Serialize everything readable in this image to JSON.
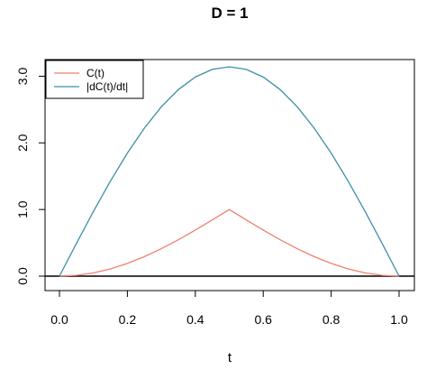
{
  "chart_data": {
    "type": "line",
    "title": "D =  1",
    "xlabel": "t",
    "ylabel": "",
    "xlim": [
      0,
      1
    ],
    "ylim": [
      0,
      3.1416
    ],
    "x_ticks": [
      0.0,
      0.2,
      0.4,
      0.6,
      0.8,
      1.0
    ],
    "x_tick_labels": [
      "0.0",
      "0.2",
      "0.4",
      "0.6",
      "0.8",
      "1.0"
    ],
    "y_ticks": [
      0.0,
      1.0,
      2.0,
      3.0
    ],
    "y_tick_labels": [
      "0.0",
      "1.0",
      "2.0",
      "3.0"
    ],
    "grid": false,
    "legend_position": "top-left",
    "reference_line_y": 0,
    "x": [
      0.0,
      0.05,
      0.1,
      0.15,
      0.2,
      0.25,
      0.3,
      0.35,
      0.4,
      0.45,
      0.5,
      0.55,
      0.6,
      0.65,
      0.7,
      0.75,
      0.8,
      0.85,
      0.9,
      0.95,
      1.0
    ],
    "series": [
      {
        "name": "C(t)",
        "color": "#F08070",
        "values": [
          0.0,
          0.0123,
          0.0489,
          0.109,
          0.191,
          0.2929,
          0.4122,
          0.546,
          0.691,
          0.8436,
          1.0,
          0.8436,
          0.691,
          0.546,
          0.4122,
          0.2929,
          0.191,
          0.109,
          0.0489,
          0.0123,
          0.0
        ]
      },
      {
        "name": "|dC(t)/dt|",
        "color": "#3D8FA6",
        "values": [
          0.0,
          0.4914,
          0.9708,
          1.4263,
          1.8466,
          2.2214,
          2.5416,
          2.7992,
          2.9878,
          3.1029,
          3.1416,
          3.1029,
          2.9878,
          2.7992,
          2.5416,
          2.2214,
          1.8466,
          1.4263,
          0.9708,
          0.4914,
          0.0
        ]
      }
    ]
  }
}
